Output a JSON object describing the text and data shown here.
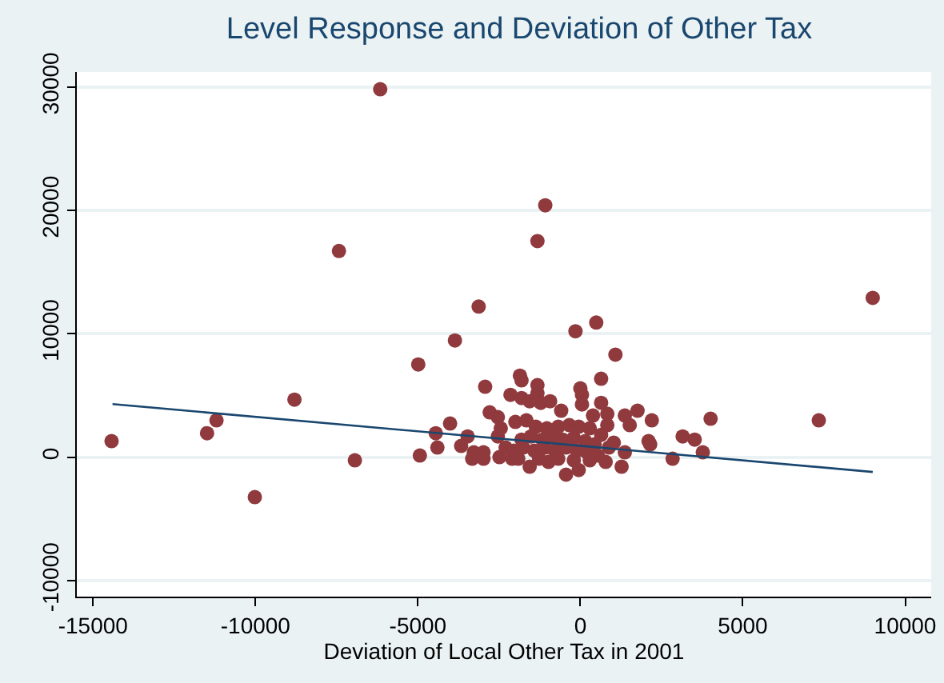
{
  "chart_data": {
    "type": "scatter",
    "title": "Level Response and Deviation of Other Tax",
    "xlabel": "Deviation of Local Other Tax in 2001",
    "xlim": [
      -15500,
      10800
    ],
    "xticks": [
      -15000,
      -10000,
      -5000,
      0,
      5000,
      10000
    ],
    "ylim": [
      -11300,
      31200
    ],
    "yticks": [
      -10000,
      0,
      10000,
      20000,
      30000
    ],
    "grid": "y",
    "series": [
      {
        "marker": "circle",
        "color": "#903a3e",
        "x": [
          -14430,
          -11490,
          -11200,
          -10020,
          -8800,
          -6940,
          -7430,
          -6160,
          -4990,
          -4940,
          -4400,
          -4450,
          -4010,
          -3860,
          -3130,
          -3470,
          -3670,
          -3330,
          -1080,
          -1320,
          -150,
          490,
          1080,
          9000,
          7340,
          4010,
          3150,
          3520,
          3770,
          2840,
          -2150,
          -1810,
          -1560,
          -1320,
          -1220,
          -930,
          -590,
          50,
          50,
          640,
          830,
          390,
          1370,
          1760,
          1520,
          830,
          2200,
          -2790,
          -2540,
          -2450,
          -2540,
          -2980,
          -2490,
          -2100,
          -1560,
          -980,
          -440,
          -50,
          780,
          1270,
          1370,
          1030,
          -2000,
          -1660,
          -1370,
          -1030,
          -680,
          -340,
          -50,
          290,
          640,
          -1810,
          -1520,
          -1170,
          -830,
          -540,
          -200,
          150,
          440,
          880,
          -2050,
          -1760,
          -1420,
          -1080,
          -780,
          -440,
          -100,
          200,
          540,
          -1910,
          -1270,
          -680,
          -200,
          290,
          -2300,
          -2980,
          -3280,
          -1860,
          -1810,
          -1320,
          0,
          640,
          -2930,
          2150,
          2100
        ],
        "values": [
          1300,
          1940,
          2980,
          -3240,
          4660,
          -260,
          16700,
          29800,
          7510,
          130,
          780,
          1940,
          2720,
          9450,
          12200,
          1680,
          910,
          -130,
          20400,
          17500,
          10200,
          10900,
          8300,
          12900,
          2980,
          3110,
          1680,
          1420,
          390,
          -130,
          5050,
          4790,
          4530,
          5180,
          4400,
          4530,
          3760,
          5050,
          4270,
          4400,
          3500,
          3370,
          3370,
          3760,
          2590,
          2590,
          2980,
          3630,
          3240,
          2330,
          1680,
          -130,
          0,
          -130,
          -780,
          -390,
          -1420,
          -1040,
          -390,
          -780,
          390,
          1170,
          2850,
          2980,
          2460,
          2330,
          2460,
          2590,
          2460,
          2330,
          1810,
          1420,
          1680,
          1420,
          1680,
          1420,
          1550,
          1300,
          1040,
          780,
          520,
          780,
          520,
          780,
          520,
          780,
          520,
          390,
          130,
          -130,
          -130,
          -130,
          -260,
          -260,
          780,
          390,
          390,
          6600,
          6220,
          5830,
          5570,
          6350,
          5700,
          1040,
          1300
        ]
      },
      {
        "type": "line",
        "color": "#1a476f",
        "line_style": "solid",
        "x": [
          -14400,
          9000
        ],
        "values": [
          4300,
          -1200
        ]
      }
    ]
  }
}
